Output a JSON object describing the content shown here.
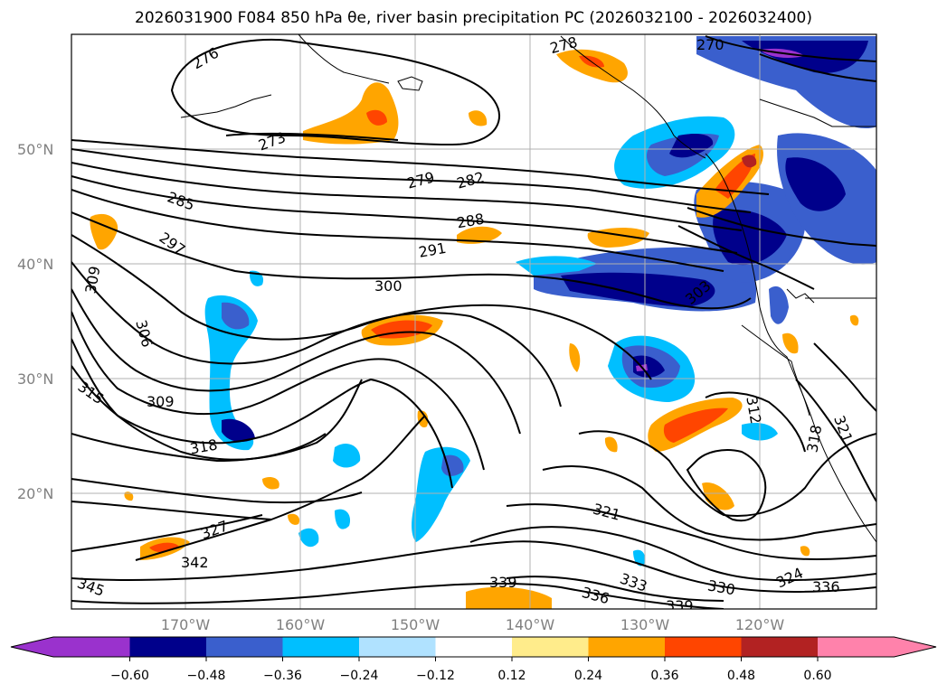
{
  "title": "2026031900 F084 850 hPa θe, river basin precipitation PC (2026032100 - 2026032400)",
  "map": {
    "lat_labels": [
      "50°N",
      "40°N",
      "30°N",
      "20°N"
    ],
    "lon_labels": [
      "170°W",
      "160°W",
      "150°W",
      "140°W",
      "130°W",
      "120°W"
    ],
    "contour_labels": [
      "276",
      "278",
      "270",
      "273",
      "279",
      "282",
      "285",
      "288",
      "291",
      "297",
      "300",
      "303",
      "306",
      "309",
      "309",
      "312",
      "315",
      "318",
      "318",
      "321",
      "321",
      "324",
      "327",
      "330",
      "333",
      "336",
      "336",
      "339",
      "339",
      "342",
      "345"
    ]
  },
  "colorbar": {
    "colors": [
      "#9a32cd",
      "#00008b",
      "#3a5fcd",
      "#00bfff",
      "#b0e2ff",
      "#ffffff",
      "#ffec8b",
      "#ffa500",
      "#ff4500",
      "#b22222",
      "#ff82ab"
    ],
    "tick_labels": [
      "−0.60",
      "−0.48",
      "−0.36",
      "−0.24",
      "−0.12",
      "0.12",
      "0.24",
      "0.36",
      "0.48",
      "0.60"
    ]
  }
}
